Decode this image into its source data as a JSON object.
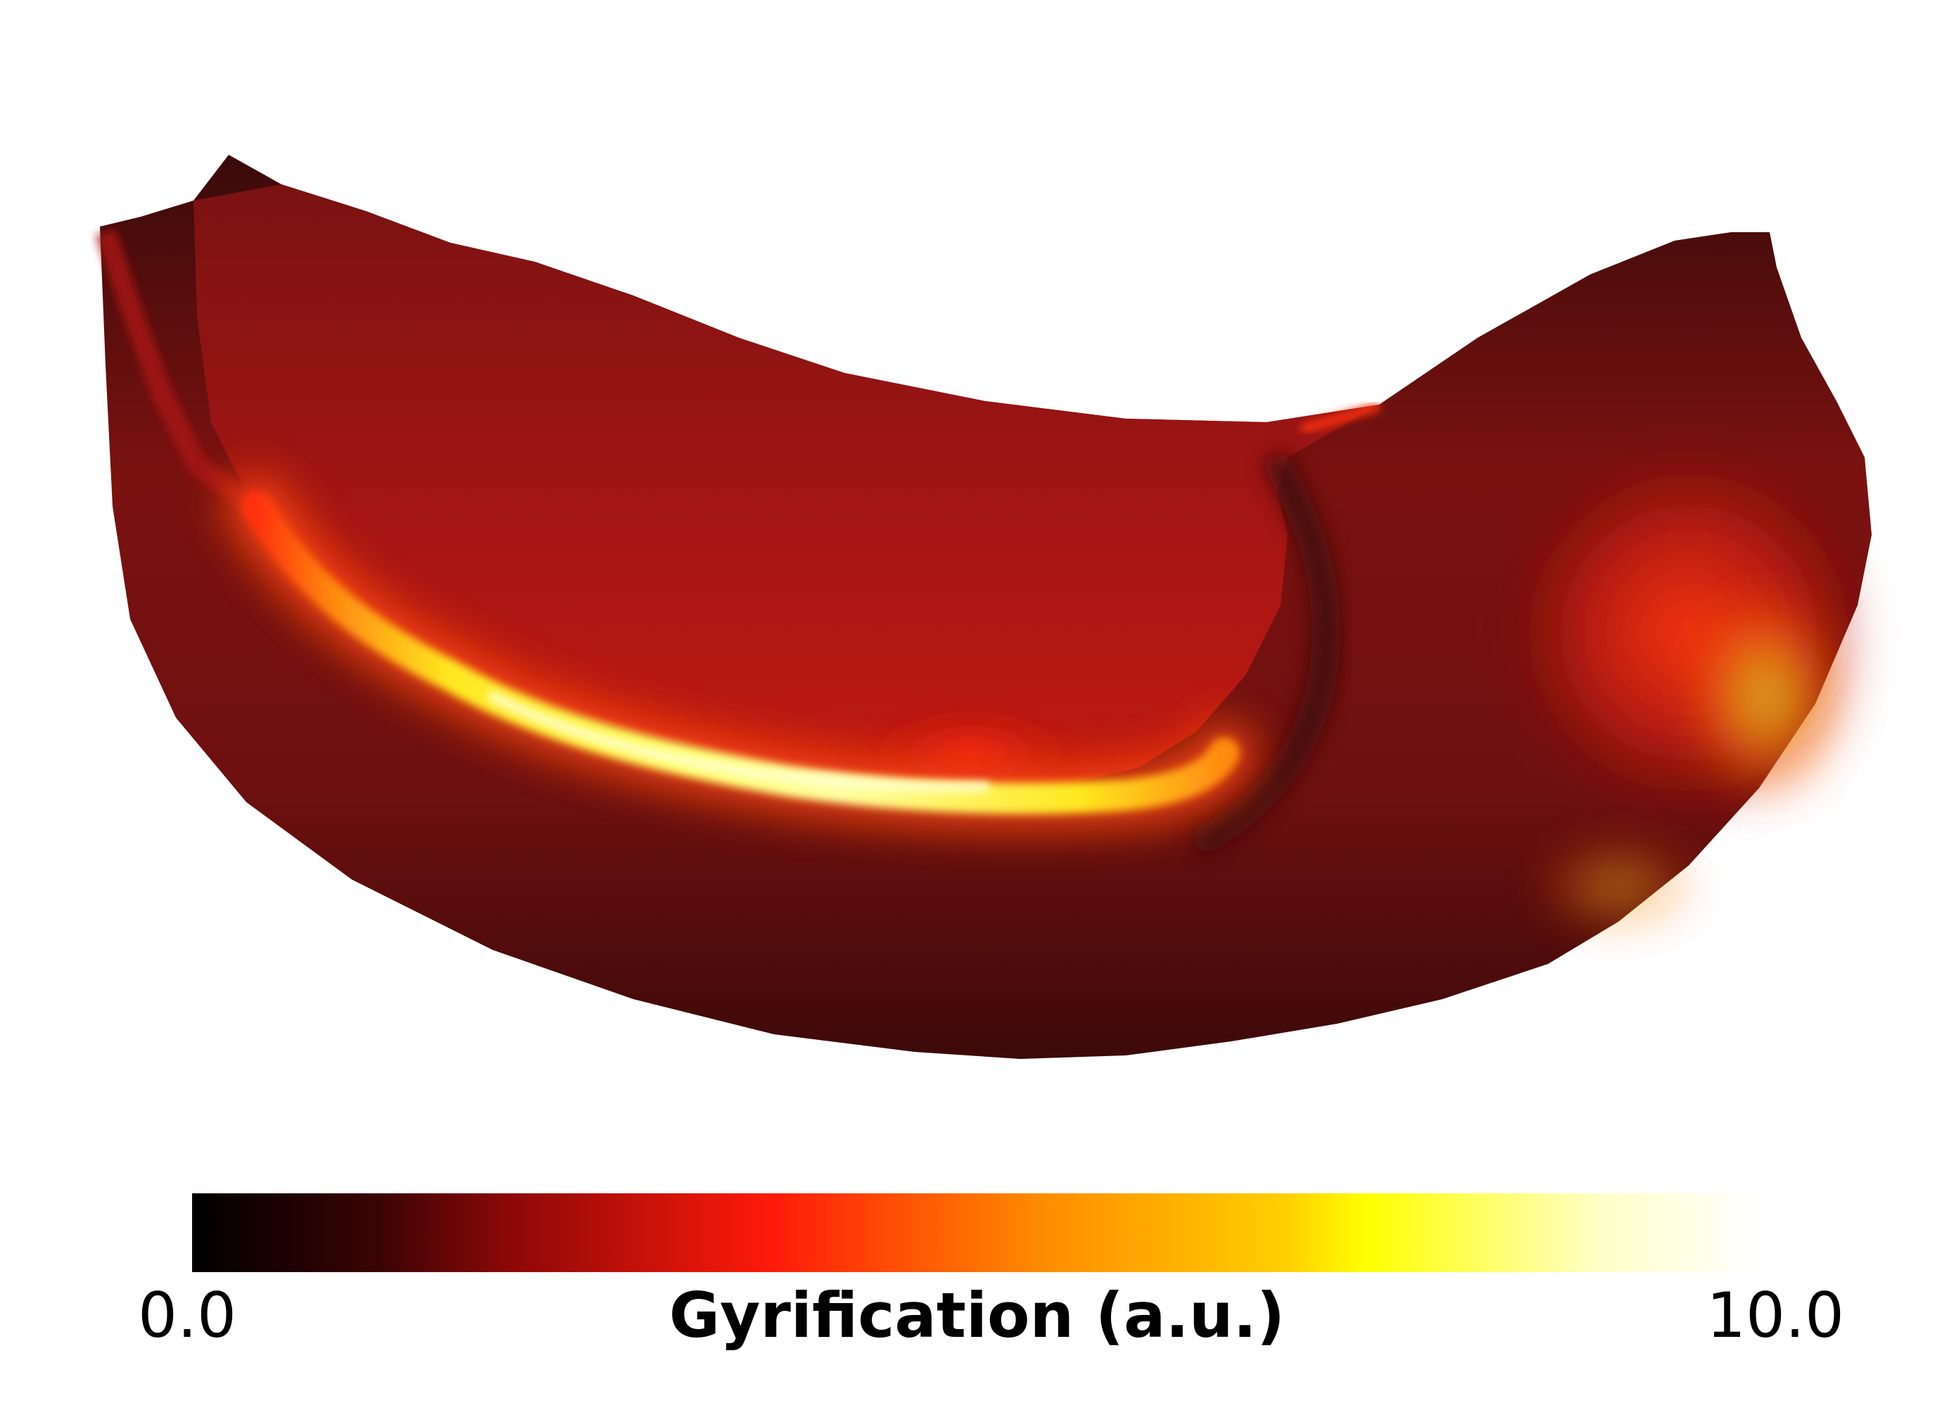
{
  "colorbar": {
    "min_label": "0.0",
    "max_label": "10.0",
    "title": "Gyrification (a.u.)",
    "colormap": "hot",
    "stops": [
      "#000000",
      "#3b0404",
      "#8a0808",
      "#ff1a0a",
      "#ff8a00",
      "#ffd000",
      "#ffff00",
      "#ffffc8",
      "#ffffff"
    ]
  },
  "surface": {
    "description_colors": {
      "dark": "#3a0a0a",
      "base": "#7a1210",
      "mid": "#a81612",
      "bright": "#ff2a10",
      "ridge": "#ffff30",
      "ridge_core": "#ffffb0"
    }
  }
}
